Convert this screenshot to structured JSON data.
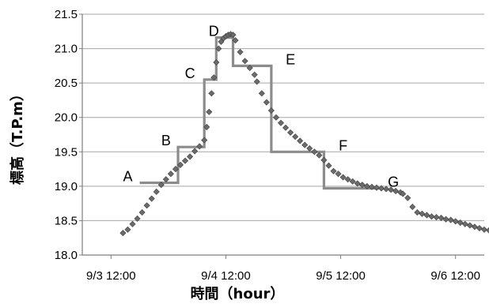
{
  "chart_data": {
    "type": "scatter",
    "xlabel": "時間（hour）",
    "ylabel": "標高（T.P.m）",
    "x_unit": "hours",
    "x_origin_label": "9/3 12:00",
    "xlim": [
      -6,
      78
    ],
    "ylim": [
      18.0,
      21.5
    ],
    "x_ticks": [
      {
        "x": 0,
        "label": "9/3 12:00"
      },
      {
        "x": 24,
        "label": "9/4 12:00"
      },
      {
        "x": 48,
        "label": "9/5 12:00"
      },
      {
        "x": 72,
        "label": "9/6 12:00"
      }
    ],
    "y_ticks": [
      "18.0",
      "18.5",
      "19.0",
      "19.5",
      "20.0",
      "20.5",
      "21.0",
      "21.5"
    ],
    "grid": "horizontal",
    "series": [
      {
        "marker": "diamond",
        "color": "#6b6b6b",
        "points": [
          [
            2.5,
            18.32
          ],
          [
            3.5,
            18.37
          ],
          [
            4.5,
            18.45
          ],
          [
            5.5,
            18.53
          ],
          [
            6.5,
            18.62
          ],
          [
            7.5,
            18.72
          ],
          [
            8.5,
            18.82
          ],
          [
            9.5,
            18.92
          ],
          [
            10.5,
            19.02
          ],
          [
            11.5,
            19.1
          ],
          [
            12.5,
            19.18
          ],
          [
            13.5,
            19.25
          ],
          [
            14.5,
            19.31
          ],
          [
            15.5,
            19.37
          ],
          [
            16.5,
            19.43
          ],
          [
            17.5,
            19.51
          ],
          [
            18.5,
            19.58
          ],
          [
            19.5,
            19.67
          ],
          [
            20.0,
            19.86
          ],
          [
            20.5,
            20.08
          ],
          [
            21.0,
            20.35
          ],
          [
            21.5,
            20.58
          ],
          [
            22.0,
            20.8
          ],
          [
            22.5,
            21.0
          ],
          [
            23.0,
            21.1
          ],
          [
            23.5,
            21.15
          ],
          [
            24.0,
            21.18
          ],
          [
            24.5,
            21.2
          ],
          [
            25.0,
            21.21
          ],
          [
            25.5,
            21.2
          ],
          [
            26.0,
            21.12
          ],
          [
            27.0,
            20.95
          ],
          [
            28.0,
            20.82
          ],
          [
            29.0,
            20.72
          ],
          [
            30.0,
            20.62
          ],
          [
            30.5,
            20.52
          ],
          [
            31.5,
            20.35
          ],
          [
            32.5,
            20.22
          ],
          [
            33.5,
            20.1
          ],
          [
            34.5,
            20.0
          ],
          [
            35.5,
            19.92
          ],
          [
            36.5,
            19.85
          ],
          [
            37.5,
            19.78
          ],
          [
            38.5,
            19.72
          ],
          [
            39.5,
            19.66
          ],
          [
            40.5,
            19.6
          ],
          [
            41.5,
            19.55
          ],
          [
            42.5,
            19.5
          ],
          [
            43.5,
            19.45
          ],
          [
            44.5,
            19.38
          ],
          [
            45.5,
            19.3
          ],
          [
            46.5,
            19.22
          ],
          [
            47.5,
            19.18
          ],
          [
            48.5,
            19.13
          ],
          [
            49.5,
            19.1
          ],
          [
            50.5,
            19.07
          ],
          [
            51.5,
            19.04
          ],
          [
            52.5,
            19.02
          ],
          [
            53.5,
            19.0
          ],
          [
            54.5,
            18.99
          ],
          [
            55.5,
            18.98
          ],
          [
            56.5,
            18.97
          ],
          [
            57.5,
            18.96
          ],
          [
            58.5,
            18.95
          ],
          [
            59.5,
            18.93
          ],
          [
            60.5,
            18.91
          ],
          [
            61.0,
            18.89
          ],
          [
            62.0,
            18.83
          ],
          [
            63.0,
            18.7
          ],
          [
            64.0,
            18.62
          ],
          [
            65.0,
            18.6
          ],
          [
            66.0,
            18.58
          ],
          [
            67.0,
            18.56
          ],
          [
            68.0,
            18.55
          ],
          [
            69.0,
            18.54
          ],
          [
            70.0,
            18.52
          ],
          [
            71.0,
            18.51
          ],
          [
            72.0,
            18.49
          ],
          [
            73.0,
            18.47
          ],
          [
            74.0,
            18.45
          ],
          [
            75.0,
            18.43
          ],
          [
            76.0,
            18.41
          ],
          [
            77.0,
            18.39
          ],
          [
            78.0,
            18.37
          ],
          [
            79.0,
            18.36
          ],
          [
            80.0,
            18.35
          ],
          [
            81.0,
            18.33
          ],
          [
            82.0,
            18.32
          ],
          [
            83.0,
            18.31
          ]
        ]
      },
      {
        "type": "step-line",
        "color": "#8c8c8c",
        "points": [
          [
            6,
            19.05
          ],
          [
            14,
            19.05
          ],
          [
            14,
            19.57
          ],
          [
            19.5,
            19.57
          ],
          [
            19.5,
            20.55
          ],
          [
            22,
            20.55
          ],
          [
            22,
            21.16
          ],
          [
            25.5,
            21.16
          ],
          [
            25.5,
            20.75
          ],
          [
            33.5,
            20.75
          ],
          [
            33.5,
            19.5
          ],
          [
            44.5,
            19.5
          ],
          [
            44.5,
            18.97
          ],
          [
            56,
            18.97
          ]
        ]
      }
    ],
    "annotations": [
      {
        "text": "A",
        "x": 3.5,
        "y": 19.05
      },
      {
        "text": "B",
        "x": 11.5,
        "y": 19.57
      },
      {
        "text": "C",
        "x": 16.5,
        "y": 20.55
      },
      {
        "text": "D",
        "x": 21.5,
        "y": 21.16
      },
      {
        "text": "E",
        "x": 37.5,
        "y": 20.75
      },
      {
        "text": "F",
        "x": 48.5,
        "y": 19.5
      },
      {
        "text": "G",
        "x": 59.0,
        "y": 18.97
      }
    ]
  }
}
